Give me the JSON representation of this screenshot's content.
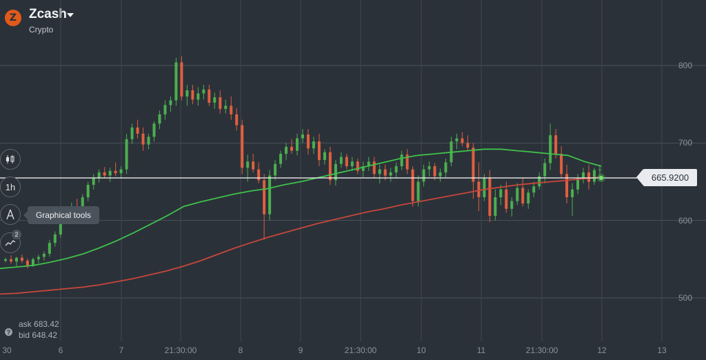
{
  "asset": {
    "name": "Zcash",
    "type": "Crypto",
    "logo_glyph": "Z",
    "logo_color": "#e05a1a"
  },
  "tools": {
    "timeframe_label": "1h",
    "graphical_tools_tooltip": "Graphical tools",
    "indicators_badge": "2",
    "icons": [
      "candlestick-chart-icon",
      "timeframe-icon",
      "graphical-tools-icon",
      "indicators-icon"
    ]
  },
  "price": {
    "current": "665.9200",
    "ask_label": "ask",
    "ask_value": "683.42",
    "bid_label": "bid",
    "bid_value": "648.42"
  },
  "colors": {
    "background": "#2b3139",
    "up_candle": "#4caf50",
    "down_candle": "#e0603f",
    "ma_fast": "#3fc24a",
    "ma_slow": "#c8473b",
    "price_line": "#ffffff"
  },
  "chart_data": {
    "type": "candlestick",
    "y_ticks": [
      "800",
      "700",
      "600",
      "500"
    ],
    "x_ticks": [
      "30",
      "6",
      "7",
      "21:30:00",
      "8",
      "9",
      "21:30:00",
      "10",
      "11",
      "21:30:00",
      "12",
      "13"
    ],
    "ylim": [
      470,
      830
    ],
    "current_price": 665.92,
    "candles": [
      [
        548,
        552,
        546,
        550
      ],
      [
        550,
        555,
        544,
        547
      ],
      [
        547,
        553,
        541,
        552
      ],
      [
        552,
        556,
        545,
        548
      ],
      [
        548,
        551,
        538,
        542
      ],
      [
        542,
        552,
        540,
        550
      ],
      [
        550,
        556,
        545,
        553
      ],
      [
        553,
        560,
        548,
        557
      ],
      [
        557,
        575,
        553,
        571
      ],
      [
        571,
        586,
        566,
        582
      ],
      [
        582,
        605,
        578,
        601
      ],
      [
        601,
        615,
        596,
        612
      ],
      [
        612,
        623,
        607,
        618
      ],
      [
        618,
        628,
        610,
        614
      ],
      [
        614,
        634,
        610,
        630
      ],
      [
        630,
        650,
        625,
        646
      ],
      [
        646,
        660,
        640,
        655
      ],
      [
        655,
        666,
        649,
        662
      ],
      [
        662,
        669,
        655,
        658
      ],
      [
        658,
        668,
        650,
        664
      ],
      [
        664,
        675,
        657,
        661
      ],
      [
        661,
        670,
        654,
        666
      ],
      [
        666,
        712,
        660,
        705
      ],
      [
        705,
        725,
        699,
        720
      ],
      [
        720,
        730,
        706,
        712
      ],
      [
        712,
        720,
        690,
        698
      ],
      [
        698,
        712,
        692,
        708
      ],
      [
        708,
        728,
        702,
        725
      ],
      [
        725,
        742,
        718,
        737
      ],
      [
        737,
        755,
        730,
        749
      ],
      [
        749,
        760,
        740,
        755
      ],
      [
        755,
        810,
        748,
        804
      ],
      [
        804,
        812,
        755,
        760
      ],
      [
        760,
        775,
        748,
        768
      ],
      [
        768,
        775,
        750,
        756
      ],
      [
        756,
        772,
        748,
        764
      ],
      [
        764,
        775,
        756,
        769
      ],
      [
        769,
        775,
        748,
        752
      ],
      [
        752,
        765,
        744,
        759
      ],
      [
        759,
        768,
        738,
        744
      ],
      [
        744,
        756,
        738,
        748
      ],
      [
        748,
        760,
        730,
        737
      ],
      [
        737,
        745,
        716,
        723
      ],
      [
        723,
        730,
        660,
        668
      ],
      [
        668,
        685,
        650,
        676
      ],
      [
        676,
        686,
        662,
        666
      ],
      [
        666,
        675,
        648,
        652
      ],
      [
        652,
        660,
        575,
        608
      ],
      [
        608,
        665,
        600,
        658
      ],
      [
        658,
        678,
        652,
        673
      ],
      [
        673,
        690,
        668,
        686
      ],
      [
        686,
        700,
        678,
        695
      ],
      [
        695,
        705,
        686,
        690
      ],
      [
        690,
        712,
        684,
        706
      ],
      [
        706,
        718,
        700,
        711
      ],
      [
        711,
        718,
        685,
        693
      ],
      [
        693,
        708,
        686,
        702
      ],
      [
        702,
        712,
        670,
        678
      ],
      [
        678,
        692,
        672,
        688
      ],
      [
        688,
        695,
        646,
        652
      ],
      [
        652,
        678,
        645,
        673
      ],
      [
        673,
        688,
        668,
        682
      ],
      [
        682,
        686,
        666,
        670
      ],
      [
        670,
        682,
        664,
        676
      ],
      [
        676,
        680,
        660,
        664
      ],
      [
        664,
        676,
        656,
        670
      ],
      [
        670,
        682,
        664,
        676
      ],
      [
        676,
        682,
        655,
        660
      ],
      [
        660,
        672,
        648,
        666
      ],
      [
        666,
        672,
        652,
        658
      ],
      [
        658,
        668,
        650,
        662
      ],
      [
        662,
        675,
        655,
        670
      ],
      [
        670,
        690,
        665,
        685
      ],
      [
        685,
        692,
        660,
        666
      ],
      [
        666,
        670,
        618,
        625
      ],
      [
        625,
        658,
        618,
        650
      ],
      [
        650,
        672,
        644,
        666
      ],
      [
        666,
        676,
        657,
        670
      ],
      [
        670,
        674,
        652,
        657
      ],
      [
        657,
        667,
        650,
        662
      ],
      [
        662,
        680,
        656,
        675
      ],
      [
        675,
        708,
        670,
        702
      ],
      [
        702,
        712,
        692,
        706
      ],
      [
        706,
        714,
        696,
        700
      ],
      [
        700,
        710,
        690,
        694
      ],
      [
        694,
        700,
        628,
        650
      ],
      [
        650,
        675,
        612,
        630
      ],
      [
        630,
        660,
        625,
        655
      ],
      [
        655,
        665,
        598,
        606
      ],
      [
        606,
        640,
        600,
        630
      ],
      [
        630,
        646,
        620,
        640
      ],
      [
        640,
        650,
        610,
        615
      ],
      [
        615,
        630,
        605,
        625
      ],
      [
        625,
        648,
        620,
        642
      ],
      [
        642,
        655,
        618,
        622
      ],
      [
        622,
        640,
        615,
        636
      ],
      [
        636,
        650,
        630,
        644
      ],
      [
        644,
        662,
        640,
        657
      ],
      [
        657,
        680,
        648,
        674
      ],
      [
        674,
        725,
        665,
        710
      ],
      [
        710,
        718,
        680,
        686
      ],
      [
        686,
        696,
        655,
        660
      ],
      [
        660,
        672,
        622,
        630
      ],
      [
        630,
        648,
        606,
        640
      ],
      [
        640,
        660,
        634,
        655
      ],
      [
        655,
        668,
        648,
        662
      ],
      [
        662,
        672,
        640,
        650
      ],
      [
        650,
        668,
        646,
        665
      ],
      [
        665,
        672,
        652,
        666
      ]
    ],
    "series": [
      {
        "name": "",
        "color": "#3fc24a",
        "values": [
          538,
          540,
          542,
          546,
          551,
          557,
          565,
          574,
          584,
          595,
          606,
          618,
          624,
          629,
          634,
          638,
          641,
          646,
          650,
          655,
          660,
          665,
          670,
          675,
          680,
          684,
          686,
          688,
          690,
          692,
          692,
          690,
          688,
          686,
          684,
          676,
          670
        ]
      },
      {
        "name": "",
        "color": "#c8473b",
        "values": [
          505,
          506,
          508,
          510,
          512,
          514,
          517,
          521,
          525,
          530,
          535,
          541,
          548,
          556,
          564,
          571,
          578,
          584,
          590,
          596,
          601,
          606,
          611,
          615,
          620,
          624,
          628,
          632,
          636,
          640,
          643,
          646,
          648,
          650,
          652,
          654,
          656
        ]
      }
    ]
  }
}
